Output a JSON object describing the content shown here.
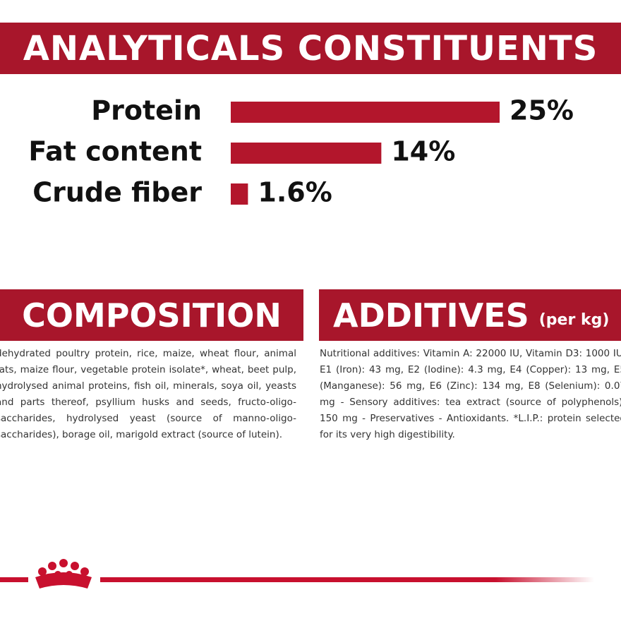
{
  "chart_data": {
    "type": "bar",
    "title": "ANALYTICALS CONSTITUENTS",
    "categories": [
      "Protein",
      "Fat content",
      "Crude fiber"
    ],
    "values": [
      25,
      14,
      1.6
    ],
    "value_labels": [
      "25%",
      "14%",
      "1.6%"
    ],
    "color": "#b3162c"
  },
  "composition": {
    "title": "COMPOSITION",
    "text": "dehydrated poultry protein, rice, maize, wheat flour, animal fats, maize flour, vegetable protein isolate*, wheat, beet pulp, hydrolysed animal proteins, fish oil, minerals, soya oil, yeasts and parts thereof, psyllium husks and seeds, fructo-oligo-saccharides, hydrolysed yeast (source of manno-oligo-saccharides), borage oil, marigold extract (source of lutein)."
  },
  "additives": {
    "title": "ADDITIVES",
    "subtitle": "(per kg)",
    "text": "Nutritional additives: Vitamin A: 22000 IU, Vitamin D3: 1000 IU, E1 (Iron): 43 mg, E2 (Iodine): 4.3 mg, E4 (Copper): 13 mg, E5 (Manganese): 56 mg, E6 (Zinc): 134 mg, E8 (Selenium): 0.07 mg - Sensory additives: tea extract (source of polyphenols): 150 mg - Preservatives - Antioxidants. *L.I.P.: protein selected for its very high digestibility."
  }
}
